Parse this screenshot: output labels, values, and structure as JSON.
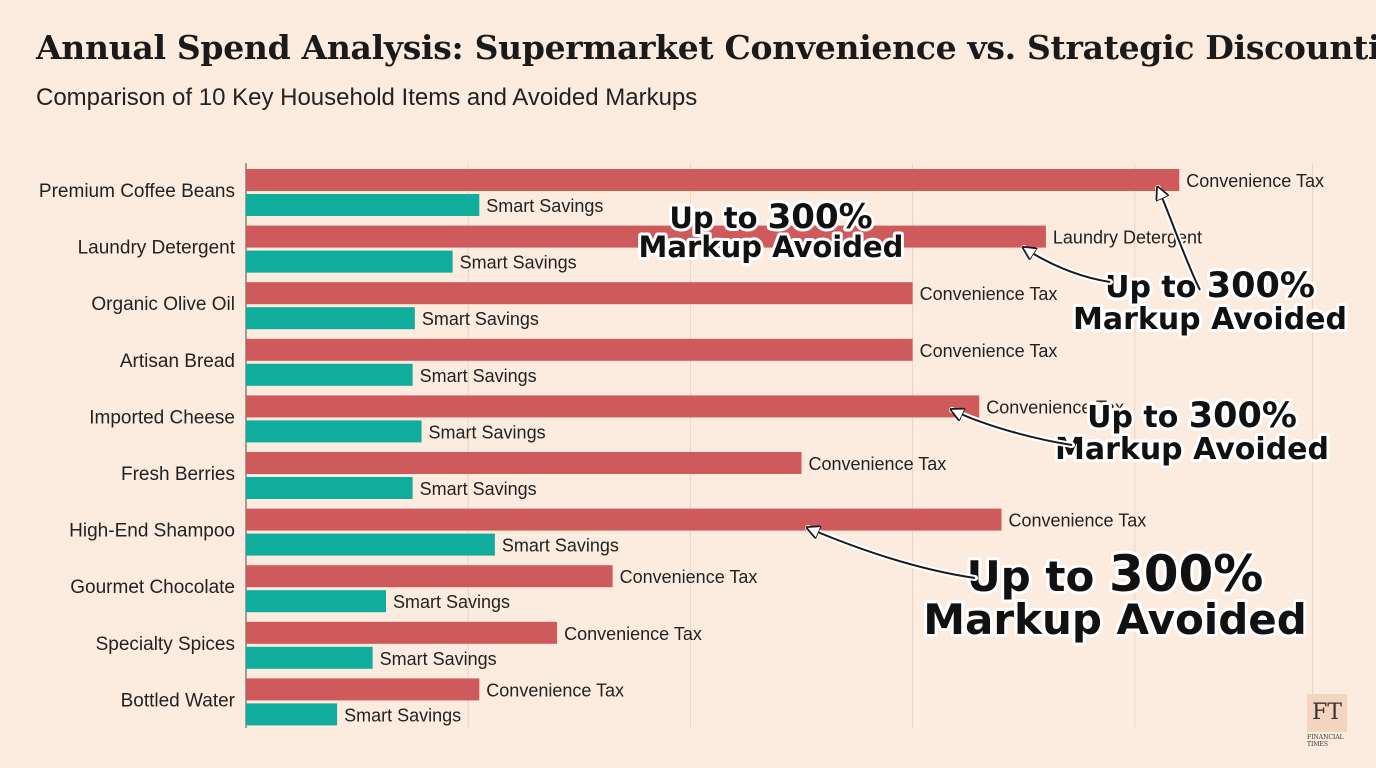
{
  "title": "Annual Spend Analysis: Supermarket Convenience vs. Strategic Discounting",
  "subtitle": "Comparison of 10 Key Household Items and Avoided Markups",
  "chart_data": {
    "type": "bar",
    "orientation": "horizontal",
    "title": "Annual Spend Analysis: Supermarket Convenience vs. Strategic Discounting",
    "subtitle": "Comparison of 10 Key Household Items and Avoided Markups",
    "categories": [
      "Premium Coffee Beans",
      "Laundry Detergent",
      "Organic Olive Oil",
      "Artisan Bread",
      "Imported Cheese",
      "Fresh Berries",
      "High-End Shampoo",
      "Gourmet Chocolate",
      "Specialty Spices",
      "Bottled Water"
    ],
    "series": [
      {
        "name": "Convenience Tax",
        "color": "#cf5a5c",
        "values": [
          42,
          36,
          30,
          30,
          33,
          25,
          34,
          16.5,
          14,
          10.5
        ],
        "bar_labels": [
          "Convenience Tax",
          "Laundry Detergent",
          "Convenience Tax",
          "Convenience Tax",
          "Convenience Tax",
          "Convenience Tax",
          "Convenience Tax",
          "Convenience Tax",
          "Convenience Tax",
          "Convenience Tax"
        ]
      },
      {
        "name": "Smart Savings",
        "color": "#10ad9c",
        "values": [
          10.5,
          9.3,
          7.6,
          7.5,
          7.9,
          7.5,
          11.2,
          6.3,
          5.7,
          4.1
        ],
        "bar_labels": [
          "Smart Savings",
          "Smart Savings",
          "Smart Savings",
          "Smart Savings",
          "Smart Savings",
          "Smart Savings",
          "Smart Savings",
          "Smart Savings",
          "Smart Savings",
          "Smart Savings"
        ]
      }
    ],
    "xlim": [
      0,
      50
    ],
    "grid": true,
    "annotations": [
      {
        "line1_prefix": "Up to ",
        "line1_bold": "300%",
        "line2": "Markup Avoided",
        "size": "small",
        "arrow": false
      },
      {
        "line1_prefix": "Up to ",
        "line1_bold": "300%",
        "line2": "Markup Avoided",
        "size": "medium",
        "arrow": true
      },
      {
        "line1_prefix": "Up to ",
        "line1_bold": "300%",
        "line2": "Markup Avoided",
        "size": "medium",
        "arrow": true
      },
      {
        "line1_prefix": "Up to ",
        "line1_bold": "300%",
        "line2": "Markup Avoided",
        "size": "large",
        "arrow": true
      }
    ]
  },
  "logo": {
    "text": "FT",
    "sub_line1": "FINANCIAL",
    "sub_line2": "TIMES"
  }
}
